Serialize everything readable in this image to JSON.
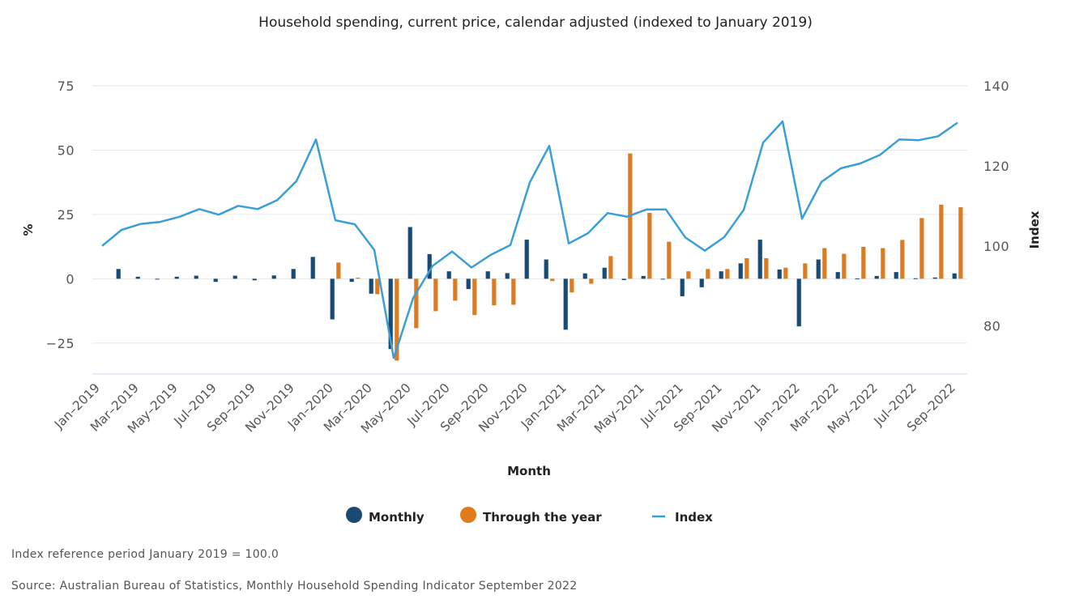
{
  "chart_data": {
    "type": "bar",
    "title": "Household spending, current price, calendar adjusted (indexed to January 2019)",
    "xlabel": "Month",
    "ylabel": "%",
    "ylabel_right": "Index",
    "ylim": [
      -37,
      75
    ],
    "ylim_right": [
      68,
      140
    ],
    "yticks": [
      -25,
      0,
      25,
      50,
      75
    ],
    "yticks_right": [
      80,
      100,
      120,
      140
    ],
    "tick_labels_left": [
      "−25",
      "0",
      "25",
      "50",
      "75"
    ],
    "tick_labels_right": [
      "80",
      "100",
      "120",
      "140"
    ],
    "grid": true,
    "legend_position": "bottom",
    "categories": [
      "Jan-2019",
      "Feb-2019",
      "Mar-2019",
      "Apr-2019",
      "May-2019",
      "Jun-2019",
      "Jul-2019",
      "Aug-2019",
      "Sep-2019",
      "Oct-2019",
      "Nov-2019",
      "Dec-2019",
      "Jan-2020",
      "Feb-2020",
      "Mar-2020",
      "Apr-2020",
      "May-2020",
      "Jun-2020",
      "Jul-2020",
      "Aug-2020",
      "Sep-2020",
      "Oct-2020",
      "Nov-2020",
      "Dec-2020",
      "Jan-2021",
      "Feb-2021",
      "Mar-2021",
      "Apr-2021",
      "May-2021",
      "Jun-2021",
      "Jul-2021",
      "Aug-2021",
      "Sep-2021",
      "Oct-2021",
      "Nov-2021",
      "Dec-2021",
      "Jan-2022",
      "Feb-2022",
      "Mar-2022",
      "Apr-2022",
      "May-2022",
      "Jun-2022",
      "Jul-2022",
      "Aug-2022",
      "Sep-2022"
    ],
    "x_tick_labels": [
      "Jan–2019",
      "Mar–2019",
      "May–2019",
      "Jul–2019",
      "Sep–2019",
      "Nov–2019",
      "Jan–2020",
      "Mar–2020",
      "May–2020",
      "Jul–2020",
      "Sep–2020",
      "Nov–2020",
      "Jan–2021",
      "Mar–2021",
      "May–2021",
      "Jul–2021",
      "Sep–2021",
      "Nov–2021",
      "Jan–2022",
      "Mar–2022",
      "May–2022",
      "Jul–2022",
      "Sep–2022"
    ],
    "series": [
      {
        "name": "Monthly",
        "type": "bar",
        "axis": "left",
        "color": "#1a4a72",
        "values": [
          null,
          3.8,
          0.8,
          -0.1,
          0.8,
          1.2,
          -1.2,
          1.2,
          -0.6,
          1.3,
          3.8,
          8.5,
          -15.8,
          -1.2,
          -5.8,
          -27.3,
          20.1,
          9.6,
          2.9,
          -4.0,
          2.9,
          2.2,
          15.2,
          7.5,
          -19.8,
          2.1,
          4.3,
          -0.5,
          1.1,
          0.0,
          -6.8,
          -3.3,
          2.9,
          6.0,
          15.2,
          3.6,
          -18.5,
          7.5,
          2.6,
          0.1,
          1.1,
          2.6,
          0.2,
          0.5,
          2.1
        ]
      },
      {
        "name": "Through the year",
        "type": "bar",
        "axis": "left",
        "color": "#e07b1a",
        "values": [
          null,
          null,
          null,
          null,
          null,
          null,
          null,
          null,
          null,
          null,
          null,
          null,
          6.3,
          0.4,
          -6.0,
          -31.8,
          -19.2,
          -12.6,
          -8.5,
          -14.1,
          -10.3,
          -10.1,
          null,
          -0.9,
          -5.3,
          -1.9,
          8.8,
          48.7,
          25.6,
          14.4,
          2.9,
          3.8,
          3.8,
          8.0,
          8.0,
          4.3,
          6.0,
          11.9,
          9.7,
          12.4,
          11.9,
          15.1,
          23.6,
          28.8,
          27.8
        ]
      },
      {
        "name": "Index",
        "type": "line",
        "axis": "right",
        "color": "#3a9fd6",
        "values": [
          100.0,
          104.0,
          105.5,
          106.0,
          107.3,
          109.2,
          107.8,
          110.0,
          109.2,
          111.4,
          116.2,
          126.6,
          106.4,
          105.4,
          99.0,
          72.0,
          87.0,
          95.0,
          98.6,
          94.6,
          97.8,
          100.2,
          115.9,
          125.0,
          100.6,
          103.2,
          108.2,
          107.3,
          109.1,
          109.1,
          102.1,
          98.8,
          102.2,
          109.0,
          125.8,
          131.1,
          106.8,
          116.0,
          119.4,
          120.6,
          122.7,
          126.6,
          126.4,
          127.4,
          130.8
        ]
      }
    ]
  },
  "notes": {
    "reference": "Index reference period January 2019 = 100.0",
    "source": "Source: Australian Bureau of Statistics, Monthly Household Spending Indicator September 2022"
  }
}
